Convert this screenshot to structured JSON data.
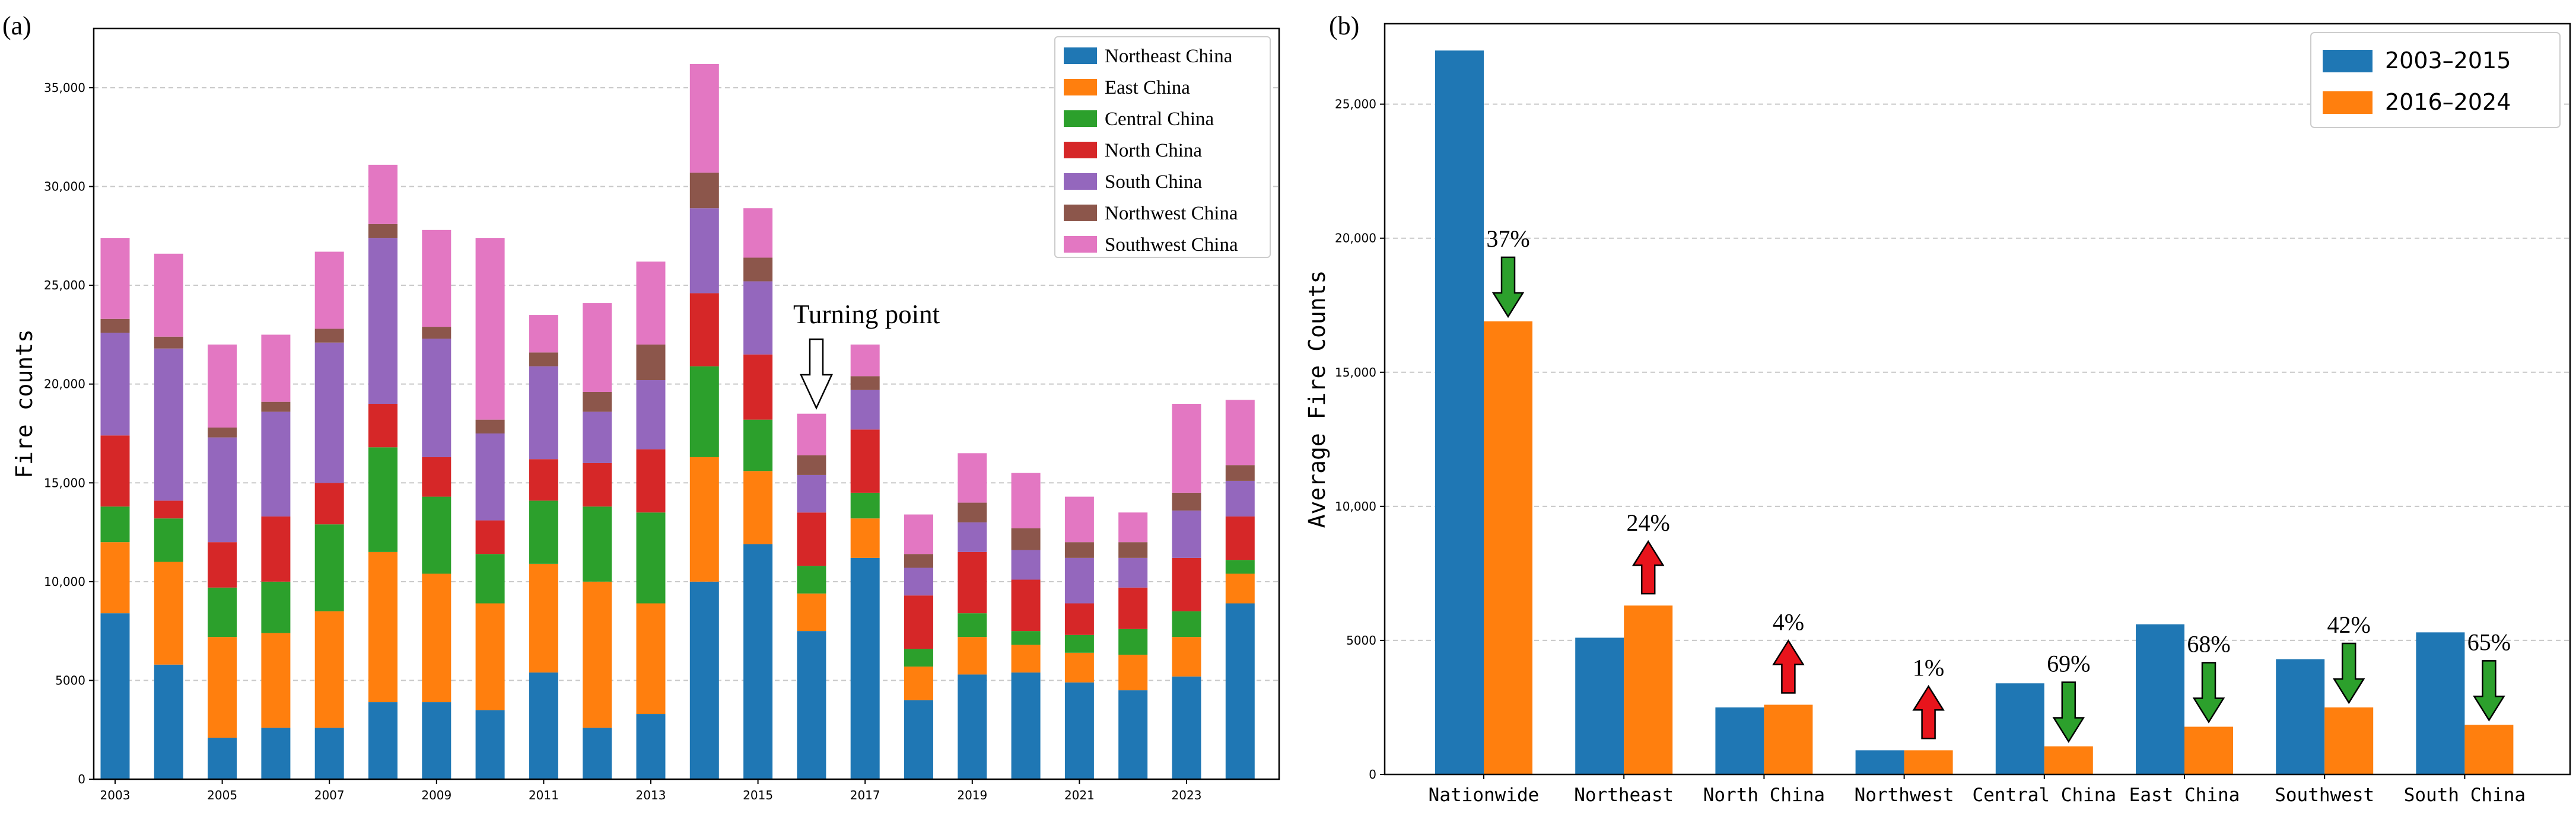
{
  "chart_data": [
    {
      "type": "bar",
      "stacked": true,
      "panel_label": "(a)",
      "title": "",
      "xlabel": "",
      "ylabel": "Fire counts",
      "ylim": [
        0,
        38000
      ],
      "yticks": [
        0,
        5000,
        10000,
        15000,
        20000,
        25000,
        30000,
        35000
      ],
      "ytick_labels": [
        "0",
        "5000",
        "10,000",
        "15,000",
        "20,000",
        "25,000",
        "30,000",
        "35,000"
      ],
      "categories": [
        "2003",
        "2004",
        "2005",
        "2006",
        "2007",
        "2008",
        "2009",
        "2010",
        "2011",
        "2012",
        "2013",
        "2014",
        "2015",
        "2016",
        "2017",
        "2018",
        "2019",
        "2020",
        "2021",
        "2022",
        "2023",
        "2024"
      ],
      "xtick_labels": [
        "2003",
        "2005",
        "2007",
        "2009",
        "2011",
        "2013",
        "2015",
        "2017",
        "2019",
        "2021",
        "2023"
      ],
      "grid": "horizontal dashed",
      "legend_position": "top-right",
      "series": [
        {
          "name": "Northeast China",
          "color": "#1f77b4",
          "values": [
            8400,
            5800,
            2100,
            2600,
            2600,
            3900,
            3900,
            3500,
            5400,
            2600,
            3300,
            10000,
            11900,
            7500,
            11200,
            4000,
            5300,
            5400,
            4900,
            4500,
            5200,
            8900
          ]
        },
        {
          "name": "East China",
          "color": "#ff7f0e",
          "values": [
            3600,
            5200,
            5100,
            4800,
            5900,
            7600,
            6500,
            5400,
            5500,
            7400,
            5600,
            6300,
            3700,
            1900,
            2000,
            1700,
            1900,
            1400,
            1500,
            1800,
            2000,
            1500
          ]
        },
        {
          "name": "Central China",
          "color": "#2ca02c",
          "values": [
            1800,
            2200,
            2500,
            2600,
            4400,
            5300,
            3900,
            2500,
            3200,
            3800,
            4600,
            4600,
            2600,
            1400,
            1300,
            900,
            1200,
            700,
            900,
            1300,
            1300,
            700
          ]
        },
        {
          "name": "North China",
          "color": "#d62728",
          "values": [
            3600,
            900,
            2300,
            3300,
            2100,
            2200,
            2000,
            1700,
            2100,
            2200,
            3200,
            3700,
            3300,
            2700,
            3200,
            2700,
            3100,
            2600,
            1600,
            2100,
            2700,
            2200
          ]
        },
        {
          "name": "South China",
          "color": "#9467bd",
          "values": [
            5200,
            7700,
            5300,
            5300,
            7100,
            8400,
            6000,
            4400,
            4700,
            2600,
            3500,
            4300,
            3700,
            1900,
            2000,
            1400,
            1500,
            1500,
            2300,
            1500,
            2400,
            1800
          ]
        },
        {
          "name": "Northwest China",
          "color": "#8c564b",
          "values": [
            700,
            600,
            500,
            500,
            700,
            700,
            600,
            700,
            700,
            1000,
            1800,
            1800,
            1200,
            1000,
            700,
            700,
            1000,
            1100,
            800,
            800,
            900,
            800
          ]
        },
        {
          "name": "Southwest China",
          "color": "#e377c2",
          "values": [
            4100,
            4200,
            4200,
            3400,
            3900,
            3000,
            4900,
            9200,
            1900,
            4500,
            4200,
            5500,
            2500,
            2100,
            1600,
            2000,
            2500,
            2800,
            2300,
            1500,
            4500,
            3300
          ]
        }
      ],
      "annotations": [
        {
          "text": "Turning point",
          "category": "2016",
          "marker": "hollow down arrow"
        }
      ]
    },
    {
      "type": "bar",
      "stacked": false,
      "panel_label": "(b)",
      "title": "",
      "xlabel": "",
      "ylabel": "Average Fire Counts",
      "ylim": [
        0,
        28000
      ],
      "yticks": [
        0,
        5000,
        10000,
        15000,
        20000,
        25000
      ],
      "ytick_labels": [
        "0",
        "5000",
        "10,000",
        "15,000",
        "20,000",
        "25,000"
      ],
      "categories": [
        "Nationwide",
        "Northeast",
        "North China",
        "Northwest",
        "Central China",
        "East China",
        "Southwest",
        "South China"
      ],
      "grid": "horizontal dashed",
      "legend_position": "top-right",
      "series": [
        {
          "name": "2003–2015",
          "color": "#1f77b4",
          "values": [
            27000,
            5100,
            2500,
            900,
            3400,
            5600,
            4300,
            5300
          ]
        },
        {
          "name": "2016–2024",
          "color": "#ff7f0e",
          "values": [
            16900,
            6300,
            2600,
            900,
            1050,
            1780,
            2500,
            1850
          ]
        }
      ],
      "change_labels": [
        {
          "category": "Nationwide",
          "text": "37%",
          "direction": "down",
          "color": "#2ca02c"
        },
        {
          "category": "Northeast",
          "text": "24%",
          "direction": "up",
          "color": "#e8141c"
        },
        {
          "category": "North China",
          "text": "4%",
          "direction": "up",
          "color": "#e8141c"
        },
        {
          "category": "Northwest",
          "text": "1%",
          "direction": "up",
          "color": "#e8141c"
        },
        {
          "category": "Central China",
          "text": "69%",
          "direction": "down",
          "color": "#2ca02c"
        },
        {
          "category": "East China",
          "text": "68%",
          "direction": "down",
          "color": "#2ca02c"
        },
        {
          "category": "Southwest",
          "text": "42%",
          "direction": "down",
          "color": "#2ca02c"
        },
        {
          "category": "South China",
          "text": "65%",
          "direction": "down",
          "color": "#2ca02c"
        }
      ]
    }
  ]
}
